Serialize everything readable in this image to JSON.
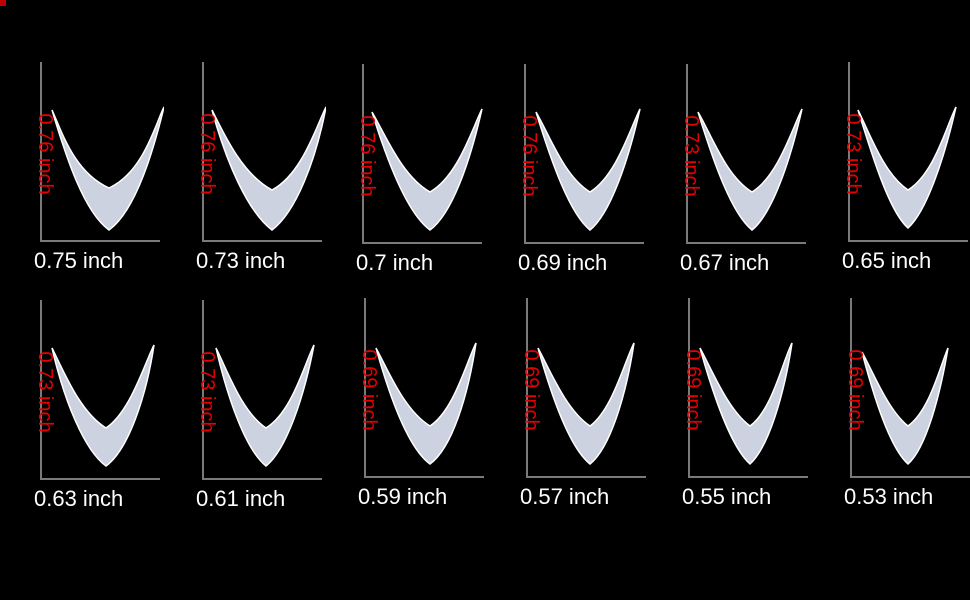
{
  "image": {
    "background": "#000000",
    "tip_color": "#dde4f2",
    "height_label_color": "#e60000",
    "width_label_color": "#ffffff"
  },
  "tips": [
    {
      "height": "0.76 inch",
      "width": "0.75 inch"
    },
    {
      "height": "0.76 inch",
      "width": "0.73 inch"
    },
    {
      "height": "0.76 inch",
      "width": "0.7 inch"
    },
    {
      "height": "0.76 inch",
      "width": "0.69 inch"
    },
    {
      "height": "0.73 inch",
      "width": "0.67 inch"
    },
    {
      "height": "0.73 inch",
      "width": "0.65 inch"
    },
    {
      "height": "0.73 inch",
      "width": "0.63 inch"
    },
    {
      "height": "0.73 inch",
      "width": "0.61 inch"
    },
    {
      "height": "0.69 inch",
      "width": "0.59 inch"
    },
    {
      "height": "0.69 inch",
      "width": "0.57 inch"
    },
    {
      "height": "0.69 inch",
      "width": "0.55 inch"
    },
    {
      "height": "0.69 inch",
      "width": "0.53 inch"
    }
  ]
}
